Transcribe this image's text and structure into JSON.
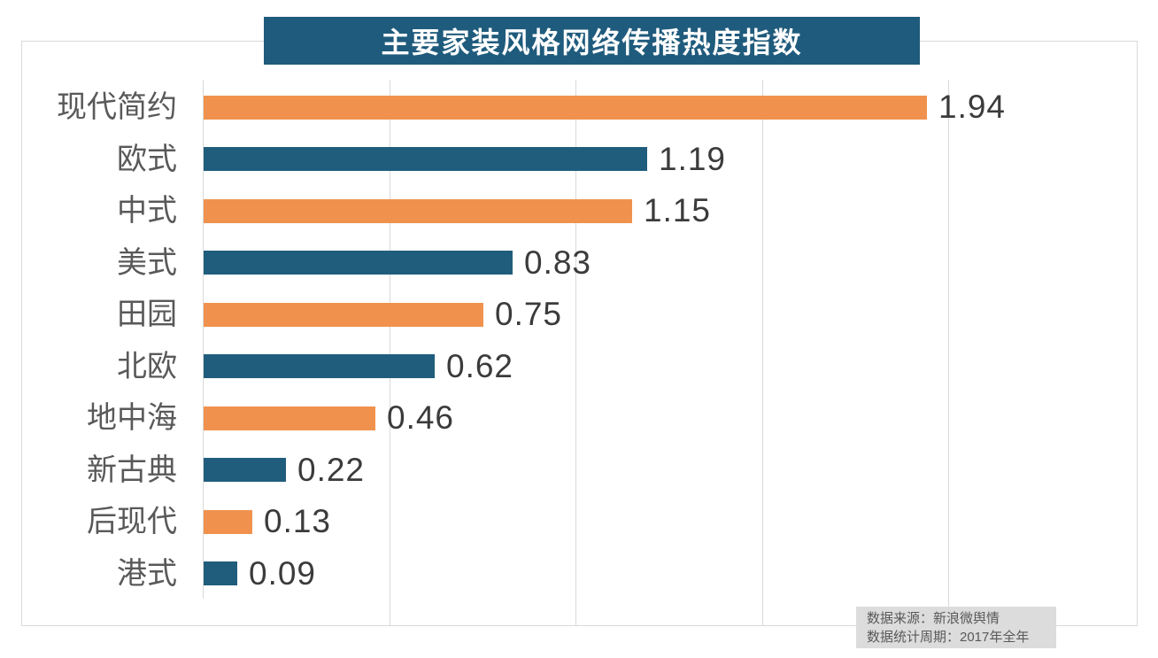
{
  "chart_data": {
    "type": "bar",
    "orientation": "horizontal",
    "title": "主要家装风格网络传播热度指数",
    "categories": [
      "现代简约",
      "欧式",
      "中式",
      "美式",
      "田园",
      "北欧",
      "地中海",
      "新古典",
      "后现代",
      "港式"
    ],
    "values": [
      1.94,
      1.19,
      1.15,
      0.83,
      0.75,
      0.62,
      0.46,
      0.22,
      0.13,
      0.09
    ],
    "value_labels": [
      "1.94",
      "1.19",
      "1.15",
      "0.83",
      "0.75",
      "0.62",
      "0.46",
      "0.22",
      "0.13",
      "0.09"
    ],
    "xlabel": "",
    "ylabel": "",
    "xlim": [
      0,
      2.5
    ],
    "gridline_step": 0.5,
    "grid": "vertical-gridlines-only",
    "legend": "none",
    "colors": {
      "bar_alternating": [
        "#F0924E",
        "#205D7D"
      ],
      "title_bg": "#1F5B7C",
      "title_text": "#FFFFFF",
      "category_label": "#595959",
      "value_label": "#3B3B3B",
      "gridline": "#D9D9D9",
      "footer_bg": "#DCDCDC",
      "footer_text": "#595959"
    }
  },
  "footer": {
    "source": "数据来源：新浪微舆情",
    "period": "数据统计周期：2017年全年"
  }
}
